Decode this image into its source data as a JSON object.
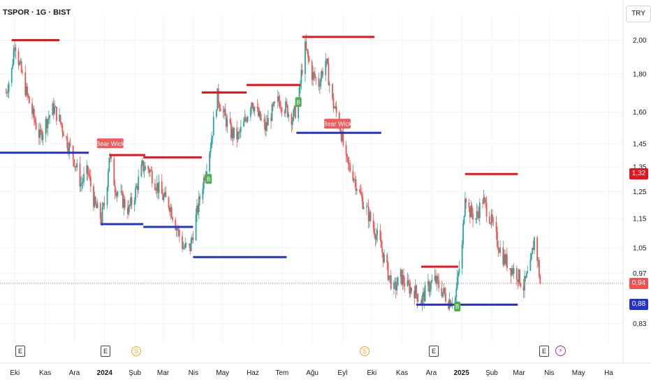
{
  "header": {
    "symbol": "TSPOR · 1G · BIST",
    "currency": "TRY"
  },
  "colors": {
    "up": "#26a69a",
    "down": "#ef5350",
    "resistance": "#e8141c",
    "support": "#2433c8",
    "bear_label": "#f05b5b",
    "bull_label": "#4caf50",
    "grid": "#f0f3fa",
    "lastline": "#ef5350"
  },
  "tags": {
    "last": "0,94",
    "upper": "1,32",
    "lower": "0,88"
  },
  "events": {
    "earnings": "E",
    "dividend": "S",
    "split": "⚡"
  },
  "chart_data": {
    "type": "candlestick",
    "title": "",
    "yscale": "log",
    "ylim": [
      0.78,
      2.16
    ],
    "yticks": [
      "0,83",
      "0,88",
      "0,97",
      "1,05",
      "1,15",
      "1,25",
      "1,35",
      "1,45",
      "1,60",
      "1,80",
      "2,00"
    ],
    "ytick_values": [
      0.83,
      0.88,
      0.97,
      1.05,
      1.15,
      1.25,
      1.35,
      1.45,
      1.6,
      1.8,
      2.0
    ],
    "xticks": [
      {
        "label": "Eki",
        "bold": false
      },
      {
        "label": "Kas",
        "bold": false
      },
      {
        "label": "Ara",
        "bold": false
      },
      {
        "label": "2024",
        "bold": true
      },
      {
        "label": "Şub",
        "bold": false
      },
      {
        "label": "Mar",
        "bold": false
      },
      {
        "label": "Nis",
        "bold": false
      },
      {
        "label": "May",
        "bold": false
      },
      {
        "label": "Haz",
        "bold": false
      },
      {
        "label": "Tem",
        "bold": false
      },
      {
        "label": "Ağu",
        "bold": false
      },
      {
        "label": "Eyl",
        "bold": false
      },
      {
        "label": "Eki",
        "bold": false
      },
      {
        "label": "Kas",
        "bold": false
      },
      {
        "label": "Ara",
        "bold": false
      },
      {
        "label": "2025",
        "bold": true
      },
      {
        "label": "Şub",
        "bold": false
      },
      {
        "label": "Mar",
        "bold": false
      },
      {
        "label": "Nis",
        "bold": false
      },
      {
        "label": "May",
        "bold": false
      },
      {
        "label": "Ha",
        "bold": false
      }
    ],
    "close_path": [
      [
        "2023-09-26",
        1.7
      ],
      [
        "2023-10-02",
        1.82
      ],
      [
        "2023-10-05",
        2.0
      ],
      [
        "2023-10-10",
        1.85
      ],
      [
        "2023-10-17",
        1.7
      ],
      [
        "2023-10-24",
        1.58
      ],
      [
        "2023-10-31",
        1.48
      ],
      [
        "2023-11-07",
        1.56
      ],
      [
        "2023-11-14",
        1.62
      ],
      [
        "2023-11-21",
        1.55
      ],
      [
        "2023-11-28",
        1.46
      ],
      [
        "2023-12-05",
        1.38
      ],
      [
        "2023-12-12",
        1.28
      ],
      [
        "2023-12-19",
        1.33
      ],
      [
        "2023-12-26",
        1.2
      ],
      [
        "2024-01-02",
        1.15
      ],
      [
        "2024-01-07",
        1.24
      ],
      [
        "2024-01-10",
        1.4
      ],
      [
        "2024-01-16",
        1.27
      ],
      [
        "2024-01-23",
        1.22
      ],
      [
        "2024-01-30",
        1.18
      ],
      [
        "2024-02-06",
        1.25
      ],
      [
        "2024-02-13",
        1.35
      ],
      [
        "2024-02-20",
        1.34
      ],
      [
        "2024-02-27",
        1.28
      ],
      [
        "2024-03-05",
        1.23
      ],
      [
        "2024-03-12",
        1.2
      ],
      [
        "2024-03-19",
        1.12
      ],
      [
        "2024-03-26",
        1.05
      ],
      [
        "2024-04-02",
        1.05
      ],
      [
        "2024-04-09",
        1.17
      ],
      [
        "2024-04-16",
        1.3
      ],
      [
        "2024-04-23",
        1.45
      ],
      [
        "2024-04-30",
        1.68
      ],
      [
        "2024-05-07",
        1.58
      ],
      [
        "2024-05-14",
        1.5
      ],
      [
        "2024-05-21",
        1.48
      ],
      [
        "2024-05-28",
        1.55
      ],
      [
        "2024-06-04",
        1.66
      ],
      [
        "2024-06-11",
        1.58
      ],
      [
        "2024-06-18",
        1.52
      ],
      [
        "2024-06-25",
        1.6
      ],
      [
        "2024-07-02",
        1.66
      ],
      [
        "2024-07-09",
        1.62
      ],
      [
        "2024-07-16",
        1.57
      ],
      [
        "2024-07-22",
        1.64
      ],
      [
        "2024-07-25",
        1.8
      ],
      [
        "2024-07-29",
        1.95
      ],
      [
        "2024-08-05",
        1.8
      ],
      [
        "2024-08-12",
        1.75
      ],
      [
        "2024-08-19",
        1.88
      ],
      [
        "2024-08-26",
        1.65
      ],
      [
        "2024-09-02",
        1.55
      ],
      [
        "2024-09-09",
        1.37
      ],
      [
        "2024-09-16",
        1.32
      ],
      [
        "2024-09-23",
        1.24
      ],
      [
        "2024-09-30",
        1.18
      ],
      [
        "2024-10-07",
        1.12
      ],
      [
        "2024-10-14",
        1.06
      ],
      [
        "2024-10-21",
        0.98
      ],
      [
        "2024-10-28",
        0.92
      ],
      [
        "2024-11-04",
        0.96
      ],
      [
        "2024-11-11",
        0.93
      ],
      [
        "2024-11-18",
        0.92
      ],
      [
        "2024-11-25",
        0.89
      ],
      [
        "2024-12-02",
        0.93
      ],
      [
        "2024-12-09",
        0.95
      ],
      [
        "2024-12-16",
        0.92
      ],
      [
        "2024-12-23",
        0.89
      ],
      [
        "2024-12-30",
        0.9
      ],
      [
        "2025-01-06",
        1.05
      ],
      [
        "2025-01-09",
        1.25
      ],
      [
        "2025-01-13",
        1.18
      ],
      [
        "2025-01-20",
        1.15
      ],
      [
        "2025-01-27",
        1.22
      ],
      [
        "2025-02-03",
        1.16
      ],
      [
        "2025-02-10",
        1.08
      ],
      [
        "2025-02-17",
        1.02
      ],
      [
        "2025-02-24",
        0.99
      ],
      [
        "2025-03-03",
        0.97
      ],
      [
        "2025-03-10",
        0.93
      ],
      [
        "2025-03-17",
        0.99
      ],
      [
        "2025-03-21",
        1.08
      ],
      [
        "2025-03-25",
        1.0
      ],
      [
        "2025-03-27",
        0.94
      ]
    ],
    "resistance_lines": [
      {
        "from": "2023-10-02",
        "to": "2023-11-20",
        "value": 2.0
      },
      {
        "from": "2024-01-10",
        "to": "2024-02-16",
        "value": 1.4
      },
      {
        "from": "2024-02-14",
        "to": "2024-04-14",
        "value": 1.39
      },
      {
        "from": "2024-04-14",
        "to": "2024-05-30",
        "value": 1.7
      },
      {
        "from": "2024-05-30",
        "to": "2024-07-24",
        "value": 1.74
      },
      {
        "from": "2024-07-26",
        "to": "2024-10-08",
        "value": 2.02
      },
      {
        "from": "2024-11-25",
        "to": "2025-01-02",
        "value": 0.99
      },
      {
        "from": "2025-01-09",
        "to": "2025-03-04",
        "value": 1.32
      }
    ],
    "support_lines": [
      {
        "from": "2023-09-20",
        "to": "2023-12-20",
        "value": 1.41
      },
      {
        "from": "2024-01-01",
        "to": "2024-02-14",
        "value": 1.13
      },
      {
        "from": "2024-02-14",
        "to": "2024-04-05",
        "value": 1.12
      },
      {
        "from": "2024-04-05",
        "to": "2024-07-10",
        "value": 1.02
      },
      {
        "from": "2024-07-20",
        "to": "2024-10-15",
        "value": 1.5
      },
      {
        "from": "2024-11-20",
        "to": "2025-03-04",
        "value": 0.88
      }
    ],
    "labels": [
      {
        "text": "Bear Wick",
        "kind": "bear",
        "date": "2024-01-11",
        "value": 1.43
      },
      {
        "text": "Bear Wick",
        "kind": "bear",
        "date": "2024-08-31",
        "value": 1.52
      },
      {
        "text": "B",
        "kind": "bull",
        "date": "2024-04-21",
        "value": 1.3
      },
      {
        "text": "B",
        "kind": "bull",
        "date": "2024-07-22",
        "value": 1.65
      },
      {
        "text": "B",
        "kind": "bull",
        "date": "2025-01-01",
        "value": 0.875
      }
    ],
    "last_price": 0.94
  }
}
